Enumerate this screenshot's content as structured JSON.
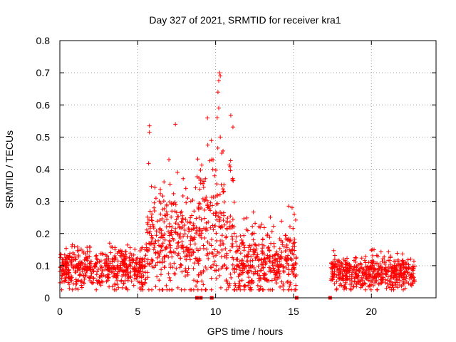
{
  "chart_data": {
    "type": "scatter",
    "title": "Day 327 of 2021, SRMTID for receiver kra1",
    "xlabel": "GPS time / hours",
    "ylabel": "SRMTID / TECUs",
    "xlim": [
      0,
      24.15
    ],
    "ylim": [
      0,
      0.8
    ],
    "xticks": [
      0,
      5,
      10,
      15,
      20
    ],
    "yticks": [
      0,
      0.1,
      0.2,
      0.3,
      0.4,
      0.5,
      0.6,
      0.7,
      0.8
    ],
    "ytick_labels": [
      "0",
      "0.1",
      "0.2",
      "0.3",
      "0.4",
      "0.5",
      "0.6",
      "0.7",
      "0.8"
    ],
    "grid": true,
    "marker": "+",
    "color": "#ff0000",
    "gap_hours": [
      15.2,
      17.3
    ],
    "series": [
      {
        "name": "SRMTID",
        "segments": [
          {
            "x_start": 0.0,
            "x_end": 5.5,
            "baseline": 0.09,
            "spread": 0.03,
            "max": 0.17
          },
          {
            "x_start": 5.5,
            "x_end": 8.8,
            "baseline": 0.17,
            "spread": 0.08,
            "max": 0.54
          },
          {
            "x_start": 8.8,
            "x_end": 11.2,
            "baseline": 0.2,
            "spread": 0.1,
            "max": 0.7
          },
          {
            "x_start": 11.2,
            "x_end": 15.2,
            "baseline": 0.11,
            "spread": 0.05,
            "max": 0.28
          },
          {
            "x_start": 17.4,
            "x_end": 22.8,
            "baseline": 0.075,
            "spread": 0.025,
            "max": 0.15
          }
        ],
        "notable_points": [
          {
            "x": 5.75,
            "y": 0.535
          },
          {
            "x": 5.75,
            "y": 0.515
          },
          {
            "x": 5.7,
            "y": 0.418
          },
          {
            "x": 7.0,
            "y": 0.43
          },
          {
            "x": 7.55,
            "y": 0.39
          },
          {
            "x": 9.5,
            "y": 0.475
          },
          {
            "x": 9.75,
            "y": 0.43
          },
          {
            "x": 10.15,
            "y": 0.64
          },
          {
            "x": 10.2,
            "y": 0.675
          },
          {
            "x": 10.25,
            "y": 0.7
          },
          {
            "x": 10.3,
            "y": 0.69
          },
          {
            "x": 10.2,
            "y": 0.59
          },
          {
            "x": 10.1,
            "y": 0.56
          },
          {
            "x": 10.3,
            "y": 0.5
          },
          {
            "x": 10.4,
            "y": 0.45
          },
          {
            "x": 14.7,
            "y": 0.285
          },
          {
            "x": 15.05,
            "y": 0.26
          },
          {
            "x": 20.0,
            "y": 0.148
          },
          {
            "x": 21.1,
            "y": 0.143
          }
        ],
        "zero_markers": [
          8.8,
          9.05,
          9.75,
          15.2,
          17.35
        ]
      }
    ]
  }
}
